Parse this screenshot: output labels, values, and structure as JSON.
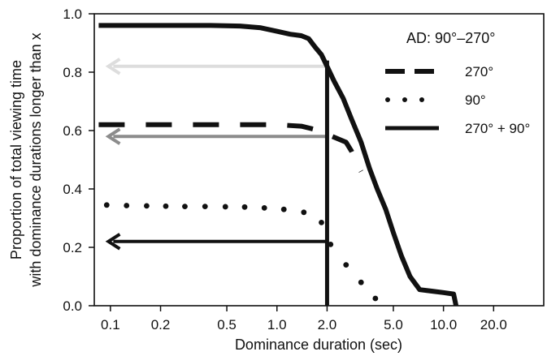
{
  "chart_data": {
    "type": "line",
    "xscale": "log",
    "xlim": [
      0.08,
      40
    ],
    "ylim": [
      0.0,
      1.0
    ],
    "xlabel": "Dominance duration (sec)",
    "ylabel_line1": "Proportion of total viewing time",
    "ylabel_line2": "with dominance durations longer than x",
    "xticks": [
      {
        "value": 0.1,
        "label": "0.1"
      },
      {
        "value": 0.2,
        "label": "0.2"
      },
      {
        "value": 0.5,
        "label": "0.5"
      },
      {
        "value": 1.0,
        "label": "1.0"
      },
      {
        "value": 2.0,
        "label": "2.0"
      },
      {
        "value": 5.0,
        "label": "5.0"
      },
      {
        "value": 10.0,
        "label": "10.0"
      },
      {
        "value": 20.0,
        "label": "20.0"
      }
    ],
    "yticks": [
      {
        "value": 0.0,
        "label": "0.0"
      },
      {
        "value": 0.2,
        "label": "0.2"
      },
      {
        "value": 0.4,
        "label": "0.4"
      },
      {
        "value": 0.6,
        "label": "0.6"
      },
      {
        "value": 0.8,
        "label": "0.8"
      },
      {
        "value": 1.0,
        "label": "1.0"
      }
    ],
    "grid": false,
    "legend": {
      "title": "AD: 90°–270°",
      "placement": "top-right",
      "entries": [
        {
          "name": "270°",
          "style": "dashed"
        },
        {
          "name": "90°",
          "style": "dotted"
        },
        {
          "name": "270° + 90°",
          "style": "solid"
        }
      ]
    },
    "series": [
      {
        "name": "270°",
        "style": "dashed",
        "color": "#111111",
        "points": [
          [
            0.085,
            0.62
          ],
          [
            0.3,
            0.62
          ],
          [
            1.0,
            0.62
          ],
          [
            1.4,
            0.615
          ],
          [
            1.8,
            0.6
          ],
          [
            1.95,
            0.59
          ],
          [
            2.6,
            0.56
          ],
          [
            2.8,
            0.53
          ],
          [
            3.0,
            0.49
          ],
          [
            3.2,
            0.46
          ]
        ]
      },
      {
        "name": "90°",
        "style": "dotted",
        "color": "#111111",
        "points": [
          [
            0.095,
            0.345
          ],
          [
            0.125,
            0.343
          ],
          [
            0.165,
            0.342
          ],
          [
            0.215,
            0.341
          ],
          [
            0.28,
            0.34
          ],
          [
            0.37,
            0.34
          ],
          [
            0.49,
            0.339
          ],
          [
            0.64,
            0.338
          ],
          [
            0.84,
            0.335
          ],
          [
            1.1,
            0.33
          ],
          [
            1.45,
            0.32
          ],
          [
            1.85,
            0.285
          ],
          [
            2.1,
            0.21
          ],
          [
            2.6,
            0.14
          ],
          [
            3.2,
            0.08
          ],
          [
            3.9,
            0.025
          ]
        ]
      },
      {
        "name": "270° + 90°",
        "style": "solid",
        "color": "#111111",
        "points": [
          [
            0.085,
            0.96
          ],
          [
            0.2,
            0.96
          ],
          [
            0.4,
            0.96
          ],
          [
            0.6,
            0.958
          ],
          [
            0.8,
            0.952
          ],
          [
            1.0,
            0.94
          ],
          [
            1.2,
            0.93
          ],
          [
            1.4,
            0.925
          ],
          [
            1.55,
            0.915
          ],
          [
            1.7,
            0.885
          ],
          [
            1.85,
            0.86
          ],
          [
            2.0,
            0.82
          ],
          [
            2.2,
            0.77
          ],
          [
            2.5,
            0.71
          ],
          [
            2.8,
            0.64
          ],
          [
            3.2,
            0.56
          ],
          [
            3.6,
            0.47
          ],
          [
            4.0,
            0.4
          ],
          [
            4.5,
            0.33
          ],
          [
            5.0,
            0.25
          ],
          [
            5.6,
            0.17
          ],
          [
            6.3,
            0.1
          ],
          [
            7.2,
            0.055
          ],
          [
            8.5,
            0.05
          ],
          [
            10.0,
            0.045
          ],
          [
            11.5,
            0.04
          ],
          [
            11.9,
            0.0
          ]
        ]
      }
    ],
    "vertical_line": {
      "x": 2.0,
      "y_from": 0.0,
      "y_to": 0.84,
      "color": "#111111"
    },
    "arrows": [
      {
        "y": 0.82,
        "from_x": 2.0,
        "to_x": 0.085,
        "color": "#dddddd"
      },
      {
        "y": 0.58,
        "from_x": 2.0,
        "to_x": 0.085,
        "color": "#8c8c8c"
      },
      {
        "y": 0.22,
        "from_x": 2.0,
        "to_x": 0.085,
        "color": "#111111"
      }
    ]
  }
}
